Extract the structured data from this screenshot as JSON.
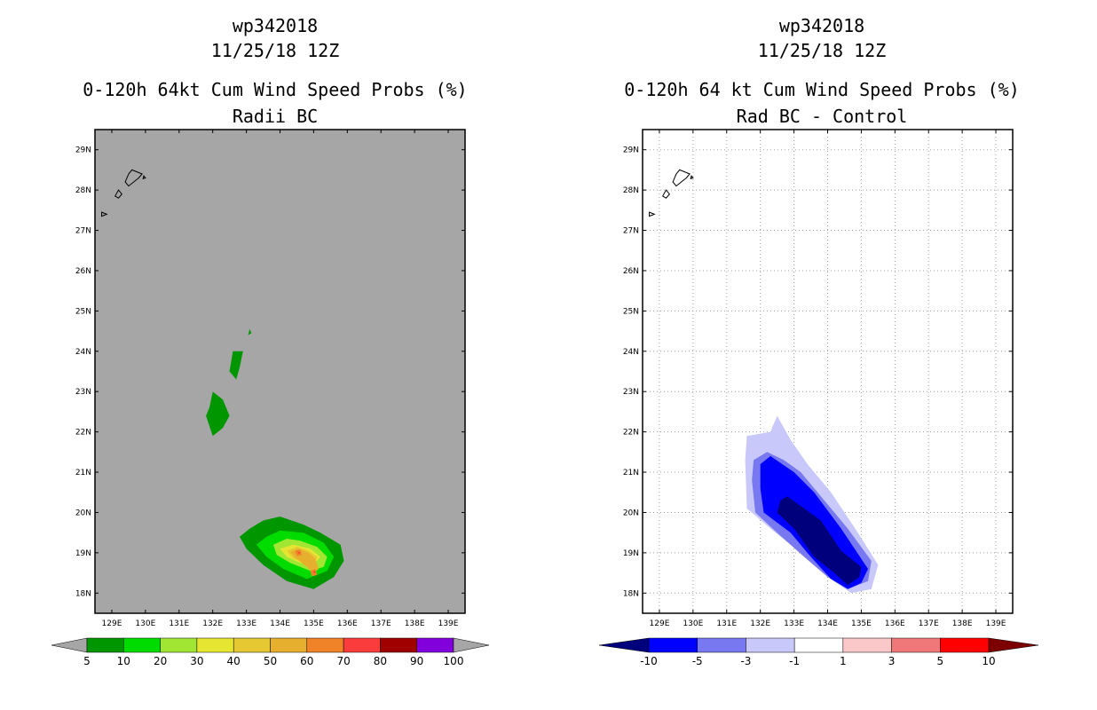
{
  "chart_data": [
    {
      "type": "filled-contour-map",
      "title_lines": [
        "wp342018",
        "11/25/18 12Z",
        "0-120h 64kt Cum Wind Speed Probs (%)",
        "Radii BC"
      ],
      "lon_range": [
        128.5,
        139.5
      ],
      "lat_range": [
        17.5,
        29.5
      ],
      "x_ticks": [
        129,
        130,
        131,
        132,
        133,
        134,
        135,
        136,
        137,
        138,
        139
      ],
      "x_tick_labels": [
        "129E",
        "130E",
        "131E",
        "132E",
        "133E",
        "134E",
        "135E",
        "136E",
        "137E",
        "138E",
        "139E"
      ],
      "y_ticks": [
        18,
        19,
        20,
        21,
        22,
        23,
        24,
        25,
        26,
        27,
        28,
        29
      ],
      "y_tick_labels": [
        "18N",
        "19N",
        "20N",
        "21N",
        "22N",
        "23N",
        "24N",
        "25N",
        "26N",
        "27N",
        "28N",
        "29N"
      ],
      "background": "#a6a6a6",
      "grid": false,
      "colorbar": {
        "levels": [
          "5",
          "10",
          "20",
          "30",
          "40",
          "50",
          "60",
          "70",
          "80",
          "90",
          "100"
        ],
        "colors": [
          "#009600",
          "#00dc00",
          "#a0e632",
          "#e6e632",
          "#e6c832",
          "#e6af2d",
          "#f08228",
          "#fa3c3c",
          "#a00000",
          "#8200dc"
        ],
        "low_end": "#a6a6a6",
        "high_end": "#a6a6a6"
      },
      "contours": [
        {
          "level": "5-10",
          "color": "#009600",
          "lonlat": [
            [
              134.0,
              19.9
            ],
            [
              133.5,
              19.8
            ],
            [
              133.1,
              19.6
            ],
            [
              132.8,
              19.4
            ],
            [
              133.0,
              19.1
            ],
            [
              133.5,
              18.7
            ],
            [
              134.2,
              18.3
            ],
            [
              135.0,
              18.1
            ],
            [
              135.6,
              18.4
            ],
            [
              135.9,
              18.8
            ],
            [
              135.8,
              19.2
            ],
            [
              135.2,
              19.5
            ],
            [
              134.7,
              19.7
            ]
          ]
        },
        {
          "level": "5-10",
          "color": "#009600",
          "lonlat": [
            [
              132.0,
              23.0
            ],
            [
              131.9,
              22.6
            ],
            [
              131.8,
              22.4
            ],
            [
              132.0,
              21.9
            ],
            [
              132.3,
              22.1
            ],
            [
              132.5,
              22.4
            ],
            [
              132.3,
              22.8
            ]
          ]
        },
        {
          "level": "5-10",
          "color": "#009600",
          "lonlat": [
            [
              132.6,
              24.0
            ],
            [
              132.9,
              24.0
            ],
            [
              132.8,
              23.6
            ],
            [
              132.7,
              23.3
            ],
            [
              132.5,
              23.5
            ]
          ]
        },
        {
          "level": "5-10",
          "color": "#009600",
          "lonlat": [
            [
              133.1,
              24.55
            ],
            [
              133.15,
              24.45
            ],
            [
              133.05,
              24.4
            ]
          ]
        },
        {
          "level": "10-20",
          "color": "#00dc00",
          "lonlat": [
            [
              134.0,
              19.55
            ],
            [
              133.6,
              19.4
            ],
            [
              133.3,
              19.2
            ],
            [
              133.6,
              18.9
            ],
            [
              134.1,
              18.6
            ],
            [
              134.8,
              18.35
            ],
            [
              135.4,
              18.55
            ],
            [
              135.6,
              18.9
            ],
            [
              135.3,
              19.25
            ],
            [
              134.7,
              19.5
            ]
          ]
        },
        {
          "level": "20-30",
          "color": "#a0e632",
          "lonlat": [
            [
              134.2,
              19.35
            ],
            [
              133.8,
              19.2
            ],
            [
              133.9,
              18.95
            ],
            [
              134.3,
              18.75
            ],
            [
              134.9,
              18.55
            ],
            [
              135.3,
              18.65
            ],
            [
              135.4,
              18.9
            ],
            [
              135.1,
              19.15
            ],
            [
              134.6,
              19.3
            ]
          ]
        },
        {
          "level": "30-40",
          "color": "#e6e632",
          "lonlat": [
            [
              134.4,
              19.2
            ],
            [
              134.0,
              19.1
            ],
            [
              134.2,
              18.9
            ],
            [
              134.6,
              18.75
            ],
            [
              135.0,
              18.7
            ],
            [
              135.2,
              18.9
            ],
            [
              134.9,
              19.1
            ]
          ]
        },
        {
          "level": "40-50",
          "color": "#e6c832",
          "lonlat": [
            [
              134.5,
              19.15
            ],
            [
              134.2,
              19.05
            ],
            [
              134.4,
              18.85
            ],
            [
              134.8,
              18.75
            ],
            [
              135.05,
              18.75
            ],
            [
              135.1,
              18.9
            ],
            [
              134.85,
              19.05
            ]
          ]
        },
        {
          "level": "50-60",
          "color": "#e6af2d",
          "lonlat": [
            [
              134.55,
              19.1
            ],
            [
              134.3,
              19.02
            ],
            [
              134.5,
              18.85
            ],
            [
              134.8,
              18.65
            ],
            [
              135.0,
              18.5
            ],
            [
              135.15,
              18.6
            ],
            [
              135.05,
              18.85
            ],
            [
              134.85,
              19.0
            ]
          ]
        },
        {
          "level": "60-70",
          "color": "#f08228",
          "lonlat": [
            [
              134.45,
              19.05
            ],
            [
              134.6,
              19.08
            ],
            [
              134.65,
              18.95
            ],
            [
              134.5,
              18.92
            ]
          ]
        },
        {
          "level": "60-70",
          "color": "#f08228",
          "lonlat": [
            [
              134.9,
              18.55
            ],
            [
              135.05,
              18.6
            ],
            [
              135.1,
              18.45
            ],
            [
              134.95,
              18.42
            ]
          ]
        },
        {
          "level": "70-80",
          "color": "#fa3c3c",
          "lonlat": [
            [
              134.52,
              19.02
            ],
            [
              134.6,
              19.02
            ],
            [
              134.58,
              18.97
            ]
          ]
        },
        {
          "level": "70-80",
          "color": "#fa3c3c",
          "lonlat": [
            [
              134.97,
              18.53
            ],
            [
              135.04,
              18.55
            ],
            [
              135.05,
              18.48
            ]
          ]
        }
      ]
    },
    {
      "type": "filled-contour-map",
      "title_lines": [
        "wp342018",
        "11/25/18 12Z",
        "0-120h 64 kt Cum Wind Speed Probs (%)",
        "Rad BC - Control"
      ],
      "lon_range": [
        128.5,
        139.5
      ],
      "lat_range": [
        17.5,
        29.5
      ],
      "x_ticks": [
        129,
        130,
        131,
        132,
        133,
        134,
        135,
        136,
        137,
        138,
        139
      ],
      "x_tick_labels": [
        "129E",
        "130E",
        "131E",
        "132E",
        "133E",
        "134E",
        "135E",
        "136E",
        "137E",
        "138E",
        "139E"
      ],
      "y_ticks": [
        18,
        19,
        20,
        21,
        22,
        23,
        24,
        25,
        26,
        27,
        28,
        29
      ],
      "y_tick_labels": [
        "18N",
        "19N",
        "20N",
        "21N",
        "22N",
        "23N",
        "24N",
        "25N",
        "26N",
        "27N",
        "28N",
        "29N"
      ],
      "background": "#ffffff",
      "grid": true,
      "colorbar": {
        "levels": [
          "-10",
          "-5",
          "-3",
          "-1",
          "1",
          "3",
          "5",
          "10"
        ],
        "colors": [
          "#0000ff",
          "#7878f0",
          "#c8c8fa",
          "#ffffff",
          "#fac8c8",
          "#f07878",
          "#ff0000"
        ],
        "low_end": "#00007d",
        "high_end": "#7d0000"
      },
      "contours": [
        {
          "level": "-3 to -1",
          "color": "#c8c8fa",
          "lonlat": [
            [
              132.3,
              22.0
            ],
            [
              131.6,
              21.9
            ],
            [
              131.55,
              21.3
            ],
            [
              131.6,
              20.1
            ],
            [
              132.3,
              19.6
            ],
            [
              133.2,
              19.0
            ],
            [
              134.0,
              18.4
            ],
            [
              134.7,
              18.0
            ],
            [
              135.3,
              18.1
            ],
            [
              135.5,
              18.7
            ],
            [
              134.9,
              19.5
            ],
            [
              134.1,
              20.5
            ],
            [
              133.4,
              21.2
            ],
            [
              132.9,
              21.8
            ],
            [
              132.5,
              22.4
            ]
          ]
        },
        {
          "level": "-5 to -3",
          "color": "#7878f0",
          "lonlat": [
            [
              132.2,
              21.5
            ],
            [
              131.8,
              21.3
            ],
            [
              131.75,
              20.8
            ],
            [
              131.85,
              20.0
            ],
            [
              132.5,
              19.5
            ],
            [
              133.3,
              18.9
            ],
            [
              134.0,
              18.4
            ],
            [
              134.6,
              18.1
            ],
            [
              135.2,
              18.3
            ],
            [
              135.3,
              18.8
            ],
            [
              134.6,
              19.6
            ],
            [
              133.8,
              20.4
            ],
            [
              133.2,
              21.0
            ],
            [
              132.7,
              21.3
            ]
          ]
        },
        {
          "level": "-10 to -5",
          "color": "#0000ff",
          "lonlat": [
            [
              132.3,
              21.4
            ],
            [
              132.0,
              21.2
            ],
            [
              132.0,
              20.6
            ],
            [
              132.1,
              20.0
            ],
            [
              132.9,
              19.5
            ],
            [
              133.5,
              18.9
            ],
            [
              134.1,
              18.35
            ],
            [
              134.6,
              18.1
            ],
            [
              135.0,
              18.25
            ],
            [
              135.2,
              18.6
            ],
            [
              134.4,
              19.6
            ],
            [
              133.6,
              20.5
            ],
            [
              133.0,
              21.0
            ]
          ]
        },
        {
          "level": "< -10",
          "color": "#00007d",
          "lonlat": [
            [
              132.6,
              20.3
            ],
            [
              132.5,
              20.0
            ],
            [
              133.0,
              19.6
            ],
            [
              133.6,
              18.9
            ],
            [
              134.2,
              18.5
            ],
            [
              134.6,
              18.2
            ],
            [
              134.95,
              18.4
            ],
            [
              135.0,
              18.65
            ],
            [
              134.4,
              19.05
            ],
            [
              133.8,
              19.8
            ],
            [
              133.3,
              20.1
            ],
            [
              132.8,
              20.4
            ]
          ]
        }
      ]
    }
  ],
  "coastlines": [
    {
      "name": "island-a",
      "lonlat": [
        [
          129.6,
          28.5
        ],
        [
          129.9,
          28.4
        ],
        [
          129.8,
          28.3
        ],
        [
          129.5,
          28.1
        ],
        [
          129.4,
          28.2
        ],
        [
          129.5,
          28.4
        ]
      ]
    },
    {
      "name": "island-b",
      "lonlat": [
        [
          129.2,
          28.0
        ],
        [
          129.3,
          27.9
        ],
        [
          129.2,
          27.8
        ],
        [
          129.1,
          27.85
        ]
      ]
    },
    {
      "name": "island-c",
      "lonlat": [
        [
          129.95,
          28.35
        ],
        [
          130.0,
          28.3
        ],
        [
          129.93,
          28.28
        ]
      ]
    },
    {
      "name": "island-d",
      "lonlat": [
        [
          128.7,
          27.45
        ],
        [
          128.85,
          27.4
        ],
        [
          128.7,
          27.35
        ]
      ]
    }
  ]
}
